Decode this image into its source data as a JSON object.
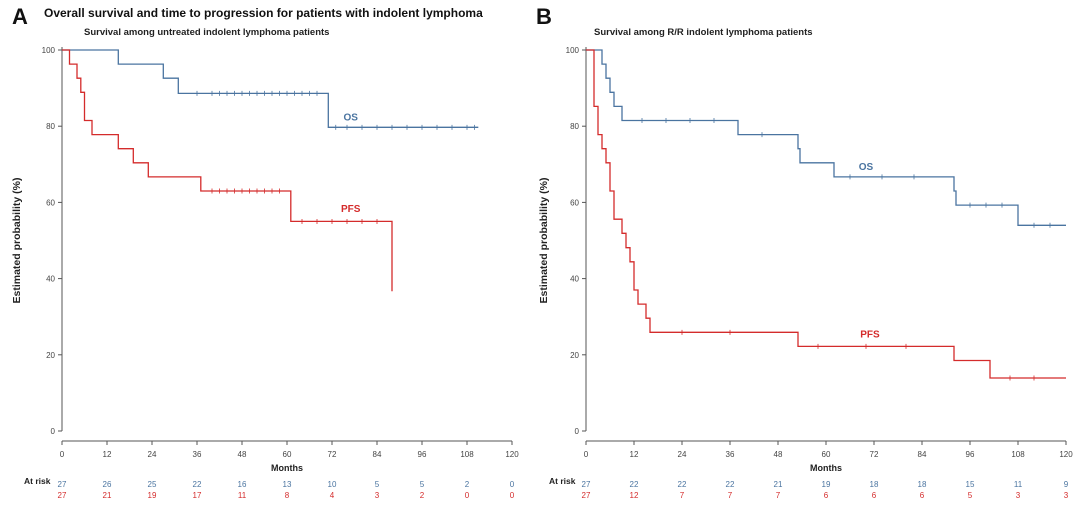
{
  "figure": {
    "title": "Overall survival and time to progression for patients with indolent lymphoma",
    "colors": {
      "os": "#4a74a0",
      "pfs": "#d42b2b",
      "axis": "#555555"
    }
  },
  "chart_data": [
    {
      "panel": "A",
      "type": "line",
      "subtitle": "Survival among untreated indolent lymphoma patients",
      "xlabel": "Months",
      "ylabel": "Estimated probability (%)",
      "xlim": [
        0,
        120
      ],
      "ylim": [
        0,
        100
      ],
      "xticks": [
        "0",
        "12",
        "24",
        "36",
        "48",
        "60",
        "72",
        "84",
        "96",
        "108",
        "120"
      ],
      "yticks": [
        "0",
        "20",
        "40",
        "60",
        "80",
        "100"
      ],
      "series": [
        {
          "name": "OS",
          "key": "os",
          "points": [
            [
              0,
              100
            ],
            [
              15,
              100
            ],
            [
              15,
              96.3
            ],
            [
              27,
              96.3
            ],
            [
              27,
              92.6
            ],
            [
              31,
              92.6
            ],
            [
              31,
              88.6
            ],
            [
              71,
              88.6
            ],
            [
              71,
              79.7
            ],
            [
              111,
              79.7
            ]
          ],
          "censor_x": [
            36,
            40,
            42,
            44,
            46,
            48,
            50,
            52,
            54,
            56,
            58,
            60,
            62,
            64,
            66,
            68,
            73,
            76,
            80,
            84,
            88,
            92,
            96,
            100,
            104,
            108,
            110
          ]
        },
        {
          "name": "PFS",
          "key": "pfs",
          "points": [
            [
              0,
              100
            ],
            [
              2,
              100
            ],
            [
              2,
              96.3
            ],
            [
              4,
              96.3
            ],
            [
              4,
              92.6
            ],
            [
              5,
              92.6
            ],
            [
              5,
              88.9
            ],
            [
              6,
              88.9
            ],
            [
              6,
              81.5
            ],
            [
              8,
              81.5
            ],
            [
              8,
              77.8
            ],
            [
              15,
              77.8
            ],
            [
              15,
              74.1
            ],
            [
              19,
              74.1
            ],
            [
              19,
              70.4
            ],
            [
              23,
              70.4
            ],
            [
              23,
              66.7
            ],
            [
              37,
              66.7
            ],
            [
              37,
              63.0
            ],
            [
              61,
              63.0
            ],
            [
              61,
              55.0
            ],
            [
              88,
              55.0
            ],
            [
              88,
              36.7
            ]
          ],
          "censor_x": [
            40,
            42,
            44,
            46,
            48,
            50,
            52,
            54,
            56,
            58,
            64,
            68,
            72,
            76,
            80,
            84
          ]
        }
      ],
      "series_labels": [
        {
          "key": "os",
          "text": "OS",
          "x": 77,
          "y": 81.5
        },
        {
          "key": "pfs",
          "text": "PFS",
          "x": 77,
          "y": 57.5
        }
      ],
      "at_risk_label": "At risk",
      "at_risk": {
        "os": [
          "27",
          "26",
          "25",
          "22",
          "16",
          "13",
          "10",
          "5",
          "5",
          "2",
          "0"
        ],
        "pfs": [
          "27",
          "21",
          "19",
          "17",
          "11",
          "8",
          "4",
          "3",
          "2",
          "0",
          "0"
        ]
      }
    },
    {
      "panel": "B",
      "type": "line",
      "subtitle": "Survival among R/R indolent lymphoma patients",
      "xlabel": "Months",
      "ylabel": "Estimated probability (%)",
      "xlim": [
        0,
        120
      ],
      "ylim": [
        0,
        100
      ],
      "xticks": [
        "0",
        "12",
        "24",
        "36",
        "48",
        "60",
        "72",
        "84",
        "96",
        "108",
        "120"
      ],
      "yticks": [
        "0",
        "20",
        "40",
        "60",
        "80",
        "100"
      ],
      "series": [
        {
          "name": "OS",
          "key": "os",
          "points": [
            [
              0,
              100
            ],
            [
              4,
              100
            ],
            [
              4,
              96.3
            ],
            [
              5,
              96.3
            ],
            [
              5,
              92.6
            ],
            [
              6,
              92.6
            ],
            [
              6,
              88.9
            ],
            [
              7,
              88.9
            ],
            [
              7,
              85.2
            ],
            [
              9,
              85.2
            ],
            [
              9,
              81.5
            ],
            [
              38,
              81.5
            ],
            [
              38,
              77.8
            ],
            [
              53,
              77.8
            ],
            [
              53,
              74.1
            ],
            [
              53.5,
              74.1
            ],
            [
              53.5,
              70.4
            ],
            [
              62,
              70.4
            ],
            [
              62,
              66.7
            ],
            [
              92,
              66.7
            ],
            [
              92,
              63.0
            ],
            [
              92.5,
              63.0
            ],
            [
              92.5,
              59.3
            ],
            [
              108,
              59.3
            ],
            [
              108,
              54.0
            ],
            [
              120,
              54.0
            ]
          ],
          "censor_x": [
            14,
            20,
            26,
            32,
            44,
            66,
            74,
            82,
            96,
            100,
            104,
            112,
            116
          ]
        },
        {
          "name": "PFS",
          "key": "pfs",
          "points": [
            [
              0,
              100
            ],
            [
              2,
              100
            ],
            [
              2,
              85.2
            ],
            [
              3,
              85.2
            ],
            [
              3,
              77.8
            ],
            [
              4,
              77.8
            ],
            [
              4,
              74.1
            ],
            [
              5,
              74.1
            ],
            [
              5,
              70.4
            ],
            [
              6,
              70.4
            ],
            [
              6,
              63.0
            ],
            [
              7,
              63.0
            ],
            [
              7,
              55.6
            ],
            [
              9,
              55.6
            ],
            [
              9,
              51.9
            ],
            [
              10,
              51.9
            ],
            [
              10,
              48.1
            ],
            [
              11,
              48.1
            ],
            [
              11,
              44.4
            ],
            [
              12,
              44.4
            ],
            [
              12,
              37.0
            ],
            [
              13,
              37.0
            ],
            [
              13,
              33.3
            ],
            [
              15,
              33.3
            ],
            [
              15,
              29.6
            ],
            [
              16,
              29.6
            ],
            [
              16,
              25.9
            ],
            [
              53,
              25.9
            ],
            [
              53,
              22.2
            ],
            [
              92,
              22.2
            ],
            [
              92,
              18.5
            ],
            [
              101,
              18.5
            ],
            [
              101,
              13.9
            ],
            [
              120,
              13.9
            ]
          ],
          "censor_x": [
            24,
            36,
            58,
            70,
            80,
            106,
            112
          ]
        }
      ],
      "series_labels": [
        {
          "key": "os",
          "text": "OS",
          "x": 70,
          "y": 68.5
        },
        {
          "key": "pfs",
          "text": "PFS",
          "x": 71,
          "y": 24.5
        }
      ],
      "at_risk_label": "At risk",
      "at_risk": {
        "os": [
          "27",
          "22",
          "22",
          "22",
          "21",
          "19",
          "18",
          "18",
          "15",
          "11",
          "9"
        ],
        "pfs": [
          "27",
          "12",
          "7",
          "7",
          "7",
          "6",
          "6",
          "6",
          "5",
          "3",
          "3"
        ]
      }
    }
  ]
}
